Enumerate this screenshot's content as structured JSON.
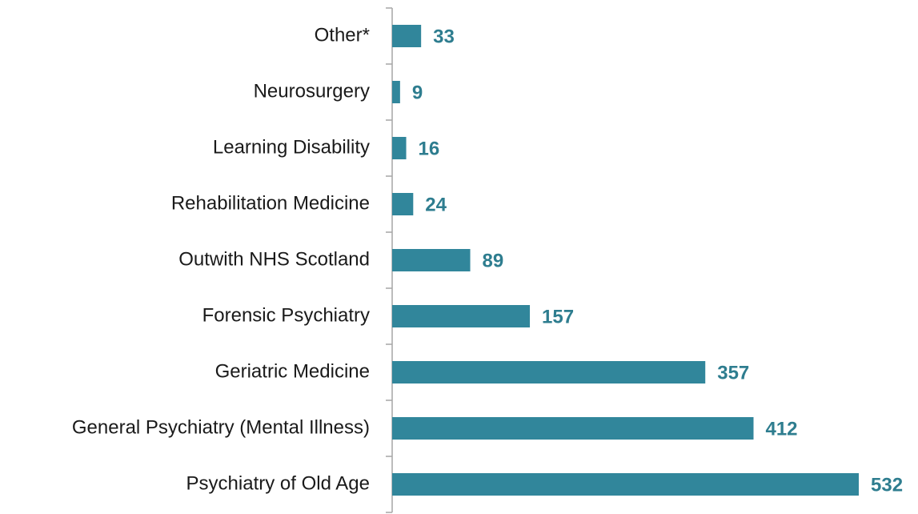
{
  "chart_data": {
    "type": "barh",
    "categories": [
      "Other*",
      "Neurosurgery",
      "Learning Disability",
      "Rehabilitation Medicine",
      "Outwith NHS Scotland",
      "Forensic Psychiatry",
      "Geriatric Medicine",
      "General Psychiatry (Mental Illness)",
      "Psychiatry of Old Age"
    ],
    "values": [
      33,
      9,
      16,
      24,
      89,
      157,
      357,
      412,
      532
    ],
    "color": "#31869b",
    "xlim": [
      0,
      532
    ]
  }
}
